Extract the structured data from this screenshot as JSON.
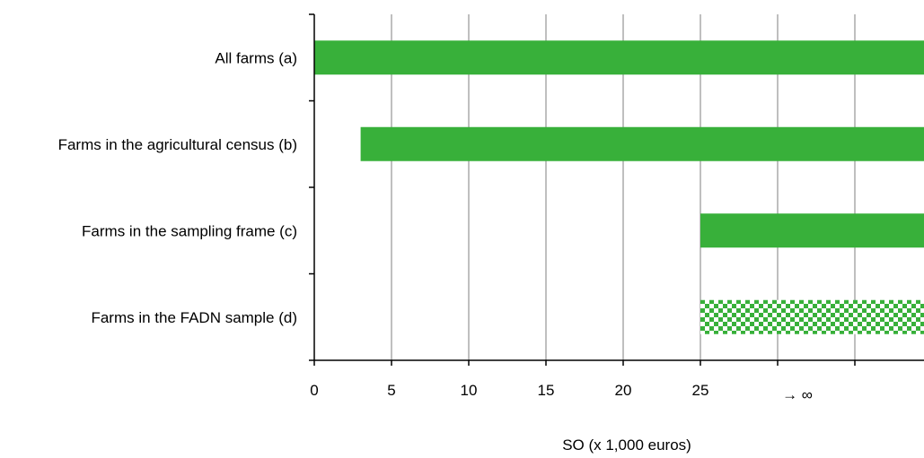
{
  "chart_data": {
    "type": "bar",
    "orientation": "horizontal",
    "categories": [
      "All farms (a)",
      "Farms in the agricultural census (b)",
      "Farms in the sampling frame (c)",
      "Farms in the FADN sample (d)"
    ],
    "series": [
      {
        "ranges": [
          {
            "start": 0,
            "end": null,
            "fill": "solid"
          },
          {
            "start": 3,
            "end": null,
            "fill": "solid"
          },
          {
            "start": 25,
            "end": null,
            "fill": "solid"
          },
          {
            "start": 25,
            "end": null,
            "fill": "checkered"
          }
        ]
      }
    ],
    "x_ticks": [
      "0",
      "5",
      "10",
      "15",
      "20",
      "25",
      "",
      ""
    ],
    "x_tick_values": [
      0,
      5,
      10,
      15,
      20,
      25,
      30,
      35
    ],
    "x_extra_label": "→ ∞",
    "xlabel": "SO (x 1,000 euros)",
    "xlim": [
      0,
      39
    ],
    "grid": "vertical",
    "colors": {
      "bar": "#38b03a",
      "grid": "#7f7f7f",
      "axis": "#000000"
    }
  }
}
